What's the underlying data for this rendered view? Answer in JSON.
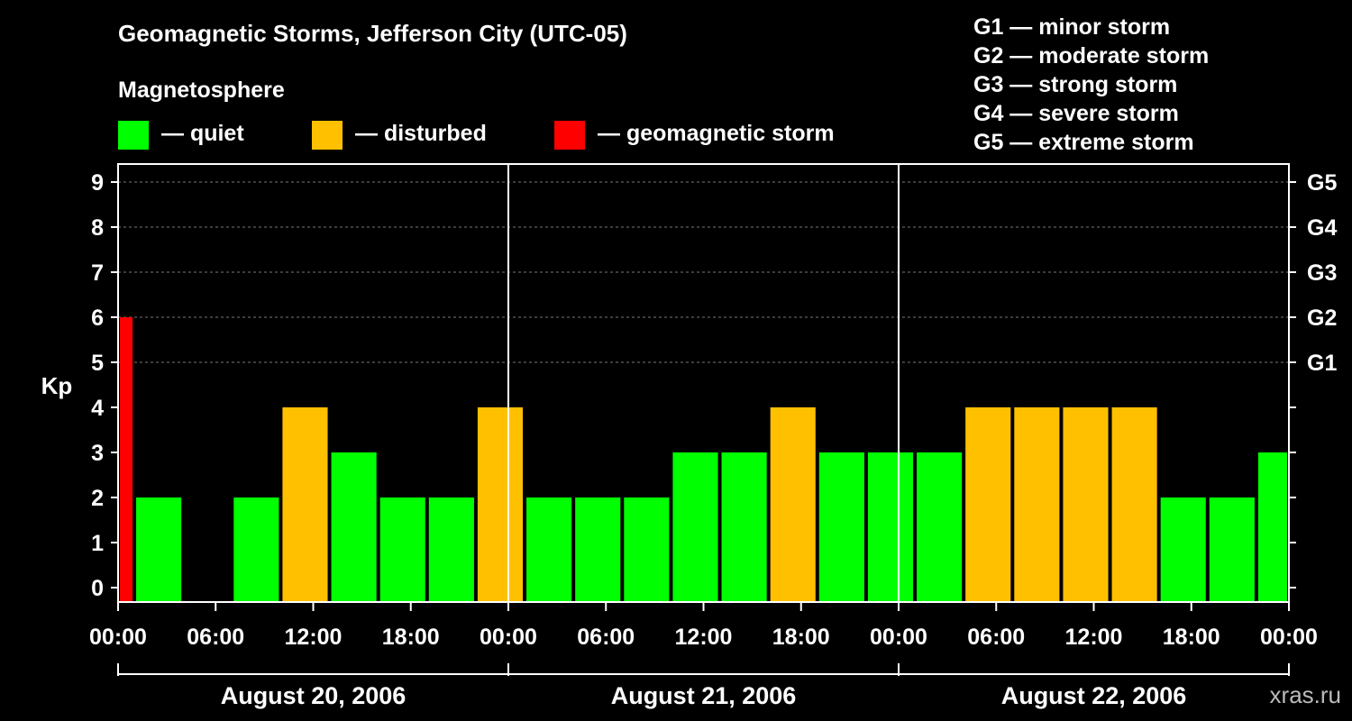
{
  "header": {
    "title": "Geomagnetic Storms, Jefferson City (UTC-05)",
    "subtitle": "Magnetosphere"
  },
  "legend": [
    {
      "label": "— quiet",
      "color": "#00ff00"
    },
    {
      "label": "— disturbed",
      "color": "#ffc000"
    },
    {
      "label": "— geomagnetic storm",
      "color": "#ff0000"
    }
  ],
  "g_scale": [
    "G1 — minor storm",
    "G2 — moderate storm",
    "G3 — strong storm",
    "G4 — severe storm",
    "G5 — extreme storm"
  ],
  "watermark": "xras.ru",
  "chart_data": {
    "type": "bar",
    "title": "Geomagnetic Storms, Jefferson City (UTC-05)",
    "ylabel": "Kp",
    "ylim": [
      0,
      9
    ],
    "yticks": [
      0,
      1,
      2,
      3,
      4,
      5,
      6,
      7,
      8,
      9
    ],
    "right_ticks": [
      {
        "kp": 5,
        "label": "G1"
      },
      {
        "kp": 6,
        "label": "G2"
      },
      {
        "kp": 7,
        "label": "G3"
      },
      {
        "kp": 8,
        "label": "G4"
      },
      {
        "kp": 9,
        "label": "G5"
      }
    ],
    "xlim_hours": [
      0,
      72
    ],
    "xtick_labels": [
      "00:00",
      "06:00",
      "12:00",
      "18:00",
      "00:00",
      "06:00",
      "12:00",
      "18:00",
      "00:00",
      "06:00",
      "12:00",
      "18:00",
      "00:00"
    ],
    "days": [
      "August 20, 2006",
      "August 21, 2006",
      "August 22, 2006"
    ],
    "grid": true,
    "colors": {
      "quiet": "#00ff00",
      "disturbed": "#ffc000",
      "storm": "#ff0000"
    },
    "bars": [
      {
        "start": 0,
        "end": 1,
        "kp": 6,
        "level": "storm"
      },
      {
        "start": 1,
        "end": 4,
        "kp": 2,
        "level": "quiet"
      },
      {
        "start": 4,
        "end": 7,
        "kp": 0,
        "level": "quiet"
      },
      {
        "start": 7,
        "end": 10,
        "kp": 2,
        "level": "quiet"
      },
      {
        "start": 10,
        "end": 13,
        "kp": 4,
        "level": "disturbed"
      },
      {
        "start": 13,
        "end": 16,
        "kp": 3,
        "level": "quiet"
      },
      {
        "start": 16,
        "end": 19,
        "kp": 2,
        "level": "quiet"
      },
      {
        "start": 19,
        "end": 22,
        "kp": 2,
        "level": "quiet"
      },
      {
        "start": 22,
        "end": 25,
        "kp": 4,
        "level": "disturbed"
      },
      {
        "start": 25,
        "end": 28,
        "kp": 2,
        "level": "quiet"
      },
      {
        "start": 28,
        "end": 31,
        "kp": 2,
        "level": "quiet"
      },
      {
        "start": 31,
        "end": 34,
        "kp": 2,
        "level": "quiet"
      },
      {
        "start": 34,
        "end": 37,
        "kp": 3,
        "level": "quiet"
      },
      {
        "start": 37,
        "end": 40,
        "kp": 3,
        "level": "quiet"
      },
      {
        "start": 40,
        "end": 43,
        "kp": 4,
        "level": "disturbed"
      },
      {
        "start": 43,
        "end": 46,
        "kp": 3,
        "level": "quiet"
      },
      {
        "start": 46,
        "end": 49,
        "kp": 3,
        "level": "quiet"
      },
      {
        "start": 49,
        "end": 52,
        "kp": 3,
        "level": "quiet"
      },
      {
        "start": 52,
        "end": 55,
        "kp": 4,
        "level": "disturbed"
      },
      {
        "start": 55,
        "end": 58,
        "kp": 4,
        "level": "disturbed"
      },
      {
        "start": 58,
        "end": 61,
        "kp": 4,
        "level": "disturbed"
      },
      {
        "start": 61,
        "end": 64,
        "kp": 4,
        "level": "disturbed"
      },
      {
        "start": 64,
        "end": 67,
        "kp": 2,
        "level": "quiet"
      },
      {
        "start": 67,
        "end": 70,
        "kp": 2,
        "level": "quiet"
      },
      {
        "start": 70,
        "end": 72,
        "kp": 3,
        "level": "quiet"
      }
    ]
  }
}
